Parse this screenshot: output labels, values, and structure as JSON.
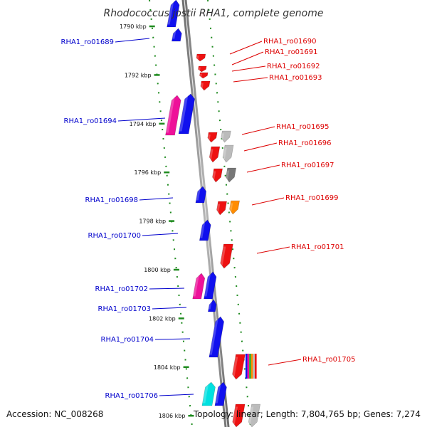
{
  "title": "Rhodococcus jostii RHA1, complete genome",
  "footer": {
    "accession": "Accession: NC_008268",
    "summary": "Topology: linear; Length: 7,804,765 bp; Genes: 7,274"
  },
  "colors": {
    "backbone": "#8c8c8c",
    "tick": "#1e8a1e",
    "left_label": "#0000cc",
    "right_label": "#dd0000",
    "blue": "#1010ee",
    "red": "#ee1111",
    "magenta": "#ee1199",
    "cyan": "#00e0e0",
    "light_gray": "#bbbbbb",
    "dark_gray": "#777777",
    "orange": "#ff8c00"
  },
  "scale_labels": [
    {
      "kbp": 1790,
      "text": "1790 kbp"
    },
    {
      "kbp": 1792,
      "text": "1792 kbp"
    },
    {
      "kbp": 1794,
      "text": "1794 kbp"
    },
    {
      "kbp": 1796,
      "text": "1796 kbp"
    },
    {
      "kbp": 1798,
      "text": "1798 kbp"
    },
    {
      "kbp": 1800,
      "text": "1800 kbp"
    },
    {
      "kbp": 1802,
      "text": "1802 kbp"
    },
    {
      "kbp": 1804,
      "text": "1804 kbp"
    },
    {
      "kbp": 1806,
      "text": "1806 kbp"
    }
  ],
  "genes_left": [
    {
      "id": "RHA1_ro01689"
    },
    {
      "id": "RHA1_ro01694"
    },
    {
      "id": "RHA1_ro01698"
    },
    {
      "id": "RHA1_ro01700"
    },
    {
      "id": "RHA1_ro01702"
    },
    {
      "id": "RHA1_ro01703"
    },
    {
      "id": "RHA1_ro01704"
    },
    {
      "id": "RHA1_ro01706"
    }
  ],
  "genes_right": [
    {
      "id": "RHA1_ro01690"
    },
    {
      "id": "RHA1_ro01691"
    },
    {
      "id": "RHA1_ro01692"
    },
    {
      "id": "RHA1_ro01693"
    },
    {
      "id": "RHA1_ro01695"
    },
    {
      "id": "RHA1_ro01696"
    },
    {
      "id": "RHA1_ro01697"
    },
    {
      "id": "RHA1_ro01699"
    },
    {
      "id": "RHA1_ro01701"
    },
    {
      "id": "RHA1_ro01705"
    }
  ]
}
